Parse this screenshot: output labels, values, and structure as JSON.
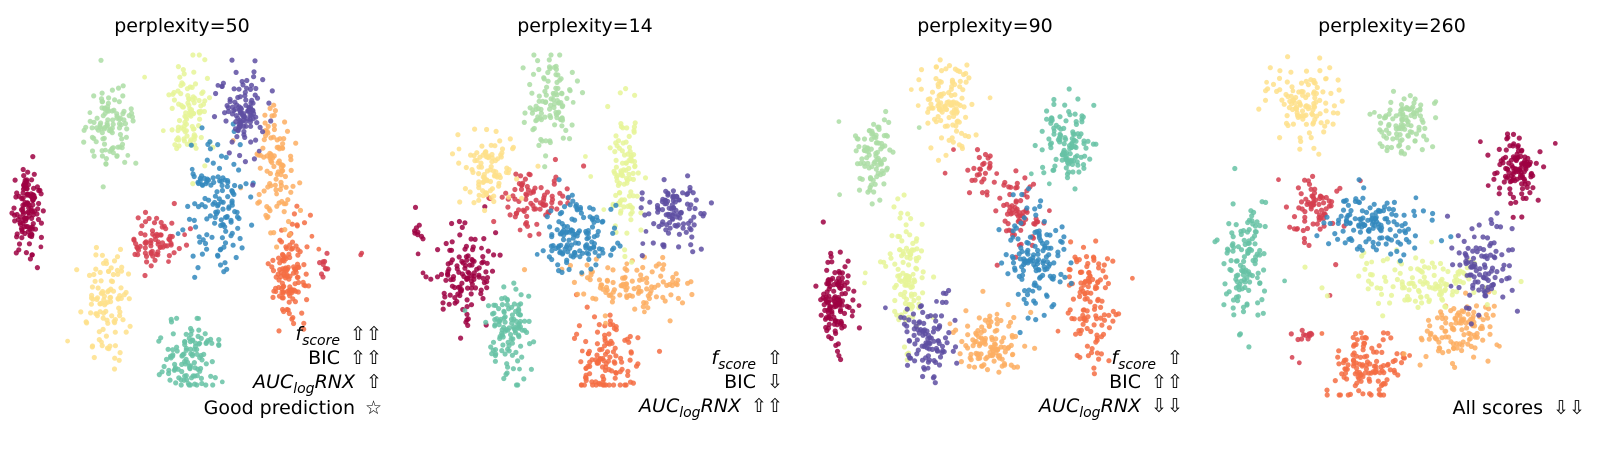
{
  "chart_data": [
    {
      "type": "scatter",
      "title": "perplexity=50",
      "annotations": [
        {
          "metric": "f",
          "metric_sub": "score",
          "italic": true,
          "symbol": "⇧⇧"
        },
        {
          "metric": "BIC",
          "metric_sub": "",
          "italic": false,
          "symbol": "⇧⇧"
        },
        {
          "metric": "AUC",
          "metric_sub": "log",
          "metric_tail": "RNX",
          "italic": true,
          "symbol": "⇧"
        },
        {
          "metric": "Good prediction",
          "metric_sub": "",
          "italic": false,
          "symbol": "☆"
        }
      ],
      "clusters": [
        {
          "color": "#9e0142",
          "cx": 0.04,
          "cy": 0.47,
          "sx": 0.018,
          "sy": 0.065,
          "n": 120
        },
        {
          "color": "#d53e4f",
          "cx": 0.4,
          "cy": 0.56,
          "sx": 0.035,
          "sy": 0.04,
          "n": 70
        },
        {
          "color": "#d53e4f",
          "cx": 0.87,
          "cy": 0.64,
          "sx": 0.008,
          "sy": 0.02,
          "n": 10
        },
        {
          "color": "#f46d43",
          "cx": 0.77,
          "cy": 0.67,
          "sx": 0.025,
          "sy": 0.08,
          "n": 120
        },
        {
          "color": "#fdae61",
          "cx": 0.73,
          "cy": 0.35,
          "sx": 0.028,
          "sy": 0.09,
          "n": 100
        },
        {
          "color": "#fee08b",
          "cx": 0.27,
          "cy": 0.75,
          "sx": 0.03,
          "sy": 0.08,
          "n": 100
        },
        {
          "color": "#e6f598",
          "cx": 0.49,
          "cy": 0.17,
          "sx": 0.028,
          "sy": 0.08,
          "n": 100
        },
        {
          "color": "#abdda4",
          "cx": 0.27,
          "cy": 0.21,
          "sx": 0.03,
          "sy": 0.07,
          "n": 100
        },
        {
          "color": "#66c2a5",
          "cx": 0.49,
          "cy": 0.92,
          "sx": 0.035,
          "sy": 0.06,
          "n": 110
        },
        {
          "color": "#3288bd",
          "cx": 0.57,
          "cy": 0.46,
          "sx": 0.04,
          "sy": 0.11,
          "n": 130
        },
        {
          "color": "#5e4fa2",
          "cx": 0.64,
          "cy": 0.17,
          "sx": 0.03,
          "sy": 0.065,
          "n": 110
        }
      ]
    },
    {
      "type": "scatter",
      "title": "perplexity=14",
      "annotations": [
        {
          "metric": "f",
          "metric_sub": "score",
          "italic": true,
          "symbol": "⇧"
        },
        {
          "metric": "BIC",
          "metric_sub": "",
          "italic": false,
          "symbol": "⇩"
        },
        {
          "metric": "AUC",
          "metric_sub": "log",
          "metric_tail": "RNX",
          "italic": true,
          "symbol": "⇧⇧"
        }
      ],
      "clusters": [
        {
          "color": "#9e0142",
          "cx": 0.14,
          "cy": 0.65,
          "sx": 0.04,
          "sy": 0.07,
          "n": 120
        },
        {
          "color": "#9e0142",
          "cx": 0.02,
          "cy": 0.53,
          "sx": 0.006,
          "sy": 0.012,
          "n": 8
        },
        {
          "color": "#d53e4f",
          "cx": 0.33,
          "cy": 0.43,
          "sx": 0.05,
          "sy": 0.045,
          "n": 80
        },
        {
          "color": "#f46d43",
          "cx": 0.54,
          "cy": 0.92,
          "sx": 0.04,
          "sy": 0.07,
          "n": 110
        },
        {
          "color": "#fdae61",
          "cx": 0.61,
          "cy": 0.7,
          "sx": 0.09,
          "sy": 0.04,
          "n": 110
        },
        {
          "color": "#fee08b",
          "cx": 0.21,
          "cy": 0.35,
          "sx": 0.04,
          "sy": 0.06,
          "n": 90
        },
        {
          "color": "#e6f598",
          "cx": 0.59,
          "cy": 0.36,
          "sx": 0.022,
          "sy": 0.11,
          "n": 100
        },
        {
          "color": "#abdda4",
          "cx": 0.38,
          "cy": 0.14,
          "sx": 0.03,
          "sy": 0.07,
          "n": 100
        },
        {
          "color": "#66c2a5",
          "cx": 0.27,
          "cy": 0.83,
          "sx": 0.03,
          "sy": 0.07,
          "n": 110
        },
        {
          "color": "#3288bd",
          "cx": 0.46,
          "cy": 0.55,
          "sx": 0.05,
          "sy": 0.06,
          "n": 130
        },
        {
          "color": "#5e4fa2",
          "cx": 0.73,
          "cy": 0.48,
          "sx": 0.04,
          "sy": 0.05,
          "n": 100
        }
      ]
    },
    {
      "type": "scatter",
      "title": "perplexity=90",
      "annotations": [
        {
          "metric": "f",
          "metric_sub": "score",
          "italic": true,
          "symbol": "⇧"
        },
        {
          "metric": "BIC",
          "metric_sub": "",
          "italic": false,
          "symbol": "⇧⇧"
        },
        {
          "metric": "AUC",
          "metric_sub": "log",
          "metric_tail": "RNX",
          "italic": true,
          "symbol": "⇩⇩"
        }
      ],
      "clusters": [
        {
          "color": "#9e0142",
          "cx": 0.07,
          "cy": 0.75,
          "sx": 0.022,
          "sy": 0.07,
          "n": 120
        },
        {
          "color": "#d53e4f",
          "cx": 0.58,
          "cy": 0.48,
          "sx": 0.025,
          "sy": 0.05,
          "n": 70
        },
        {
          "color": "#d53e4f",
          "cx": 0.48,
          "cy": 0.35,
          "sx": 0.015,
          "sy": 0.03,
          "n": 25
        },
        {
          "color": "#f46d43",
          "cx": 0.78,
          "cy": 0.74,
          "sx": 0.03,
          "sy": 0.09,
          "n": 120
        },
        {
          "color": "#fdae61",
          "cx": 0.5,
          "cy": 0.88,
          "sx": 0.04,
          "sy": 0.05,
          "n": 110
        },
        {
          "color": "#fee08b",
          "cx": 0.38,
          "cy": 0.15,
          "sx": 0.035,
          "sy": 0.075,
          "n": 110
        },
        {
          "color": "#e6f598",
          "cx": 0.27,
          "cy": 0.67,
          "sx": 0.025,
          "sy": 0.11,
          "n": 110
        },
        {
          "color": "#abdda4",
          "cx": 0.18,
          "cy": 0.31,
          "sx": 0.025,
          "sy": 0.06,
          "n": 90
        },
        {
          "color": "#66c2a5",
          "cx": 0.72,
          "cy": 0.27,
          "sx": 0.035,
          "sy": 0.06,
          "n": 110
        },
        {
          "color": "#3288bd",
          "cx": 0.62,
          "cy": 0.62,
          "sx": 0.04,
          "sy": 0.08,
          "n": 130
        },
        {
          "color": "#5e4fa2",
          "cx": 0.33,
          "cy": 0.85,
          "sx": 0.035,
          "sy": 0.06,
          "n": 100
        }
      ]
    },
    {
      "type": "scatter",
      "title": "perplexity=260",
      "annotations": [
        {
          "metric": "All scores",
          "metric_sub": "",
          "italic": false,
          "symbol": "⇩⇩"
        }
      ],
      "clusters": [
        {
          "color": "#9e0142",
          "cx": 0.84,
          "cy": 0.36,
          "sx": 0.03,
          "sy": 0.045,
          "n": 110
        },
        {
          "color": "#d53e4f",
          "cx": 0.28,
          "cy": 0.46,
          "sx": 0.035,
          "sy": 0.05,
          "n": 70
        },
        {
          "color": "#d53e4f",
          "cx": 0.25,
          "cy": 0.83,
          "sx": 0.02,
          "sy": 0.008,
          "n": 12
        },
        {
          "color": "#f46d43",
          "cx": 0.42,
          "cy": 0.92,
          "sx": 0.05,
          "sy": 0.055,
          "n": 120
        },
        {
          "color": "#fdae61",
          "cx": 0.68,
          "cy": 0.81,
          "sx": 0.05,
          "sy": 0.045,
          "n": 110
        },
        {
          "color": "#fee08b",
          "cx": 0.25,
          "cy": 0.17,
          "sx": 0.045,
          "sy": 0.06,
          "n": 110
        },
        {
          "color": "#e6f598",
          "cx": 0.56,
          "cy": 0.68,
          "sx": 0.09,
          "sy": 0.035,
          "n": 120
        },
        {
          "color": "#abdda4",
          "cx": 0.53,
          "cy": 0.22,
          "sx": 0.04,
          "sy": 0.045,
          "n": 100
        },
        {
          "color": "#66c2a5",
          "cx": 0.08,
          "cy": 0.61,
          "sx": 0.035,
          "sy": 0.1,
          "n": 120
        },
        {
          "color": "#3288bd",
          "cx": 0.44,
          "cy": 0.52,
          "sx": 0.07,
          "sy": 0.045,
          "n": 130
        },
        {
          "color": "#5e4fa2",
          "cx": 0.74,
          "cy": 0.64,
          "sx": 0.035,
          "sy": 0.06,
          "n": 100
        }
      ]
    }
  ]
}
